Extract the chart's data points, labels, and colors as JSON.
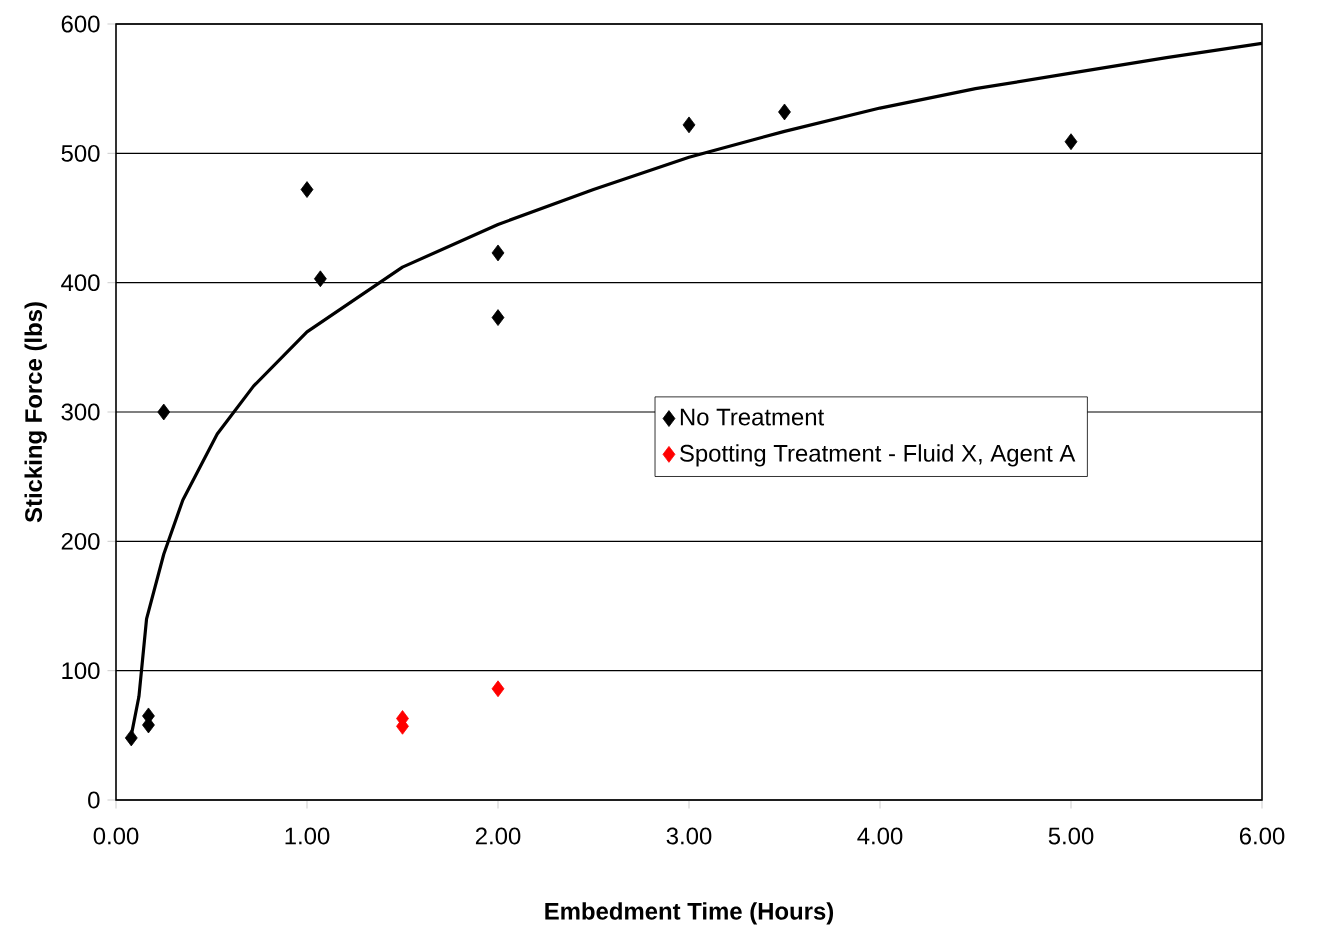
{
  "chart_data": {
    "type": "scatter",
    "xlabel": "Embedment Time (Hours)",
    "ylabel": "Sticking Force (lbs)",
    "xlim": [
      0,
      6
    ],
    "ylim": [
      0,
      600
    ],
    "xticks": [
      {
        "value": 0,
        "label": "0.00"
      },
      {
        "value": 1,
        "label": "1.00"
      },
      {
        "value": 2,
        "label": "2.00"
      },
      {
        "value": 3,
        "label": "3.00"
      },
      {
        "value": 4,
        "label": "4.00"
      },
      {
        "value": 5,
        "label": "5.00"
      },
      {
        "value": 6,
        "label": "6.00"
      }
    ],
    "yticks": [
      0,
      100,
      200,
      300,
      400,
      500,
      600
    ],
    "grid": "y",
    "legend": "center",
    "marker": "diamond",
    "series": [
      {
        "name": "No Treatment",
        "color": "#000000",
        "x": [
          0.08,
          0.17,
          0.17,
          0.25,
          1.0,
          1.07,
          2.0,
          2.0,
          3.0,
          3.5,
          5.0
        ],
        "values": [
          48,
          58,
          65,
          300,
          472,
          403,
          423,
          373,
          522,
          532,
          509
        ]
      },
      {
        "name": "Spotting Treatment - Fluid X, Agent A",
        "color": "#ff0000",
        "x": [
          1.5,
          1.5,
          2.0
        ],
        "values": [
          63,
          57,
          86
        ]
      },
      {
        "type": "line",
        "color": "#000000",
        "marker": "none",
        "x": [
          0.08,
          0.12,
          0.16,
          0.25,
          0.35,
          0.53,
          0.72,
          1.0,
          1.5,
          2.0,
          2.5,
          3.0,
          3.5,
          4.0,
          4.5,
          5.0,
          5.5,
          6.0
        ],
        "values": [
          50,
          80,
          140,
          190,
          232,
          283,
          320,
          362,
          412,
          445,
          472,
          497,
          517,
          535,
          550,
          562,
          574,
          585
        ]
      }
    ]
  }
}
